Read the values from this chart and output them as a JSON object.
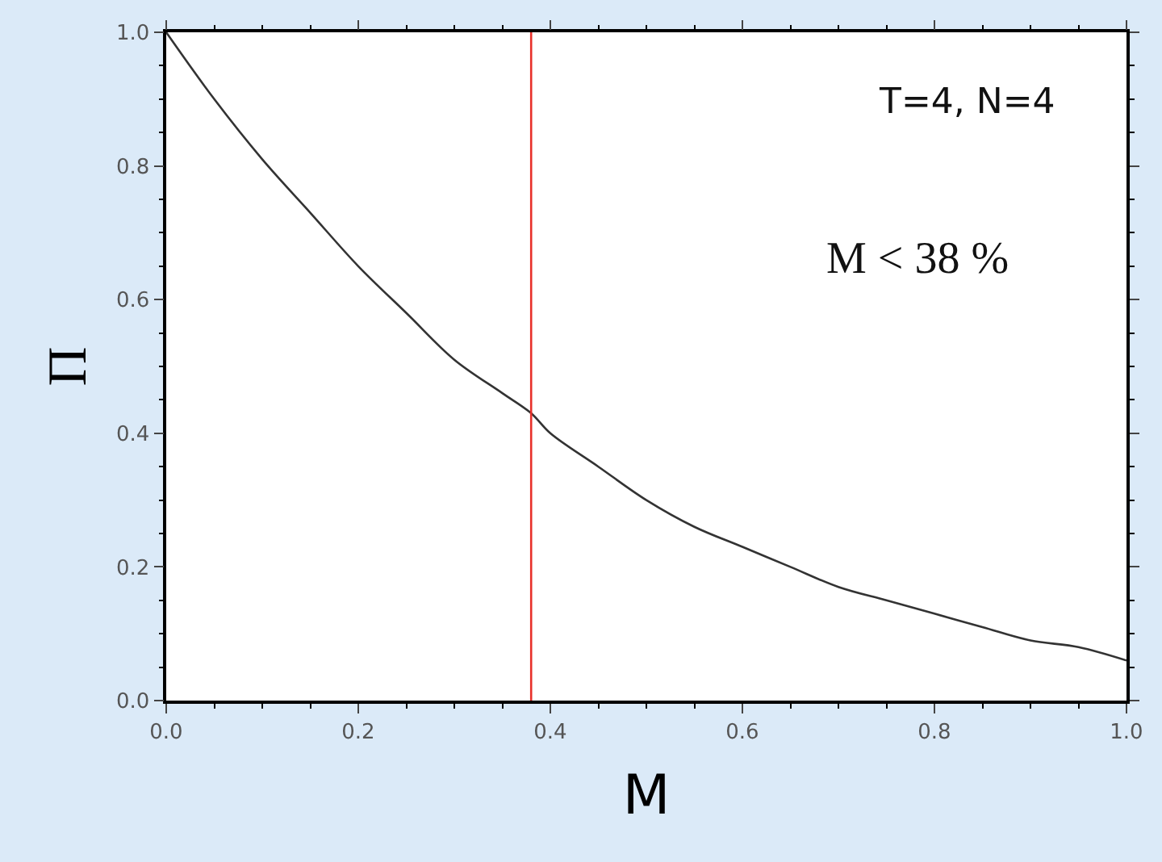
{
  "chart_data": {
    "type": "line",
    "xlabel": "M",
    "ylabel": "Π",
    "annotations": [
      "T=4, N=4",
      "M < 38 %"
    ],
    "x": [
      0,
      0.05,
      0.1,
      0.15,
      0.2,
      0.25,
      0.3,
      0.35,
      0.38,
      0.4,
      0.45,
      0.5,
      0.55,
      0.6,
      0.65,
      0.7,
      0.75,
      0.8,
      0.85,
      0.9,
      0.95,
      1.0
    ],
    "series": [
      {
        "color": "#333333",
        "values": [
          1.0,
          0.9,
          0.81,
          0.73,
          0.65,
          0.58,
          0.51,
          0.46,
          0.43,
          0.4,
          0.35,
          0.3,
          0.26,
          0.23,
          0.2,
          0.17,
          0.15,
          0.13,
          0.11,
          0.09,
          0.08,
          0.06
        ]
      }
    ],
    "xlim": [
      0,
      1
    ],
    "ylim": [
      0,
      1
    ],
    "xticks": [
      {
        "value": 0,
        "label": "0.0"
      },
      {
        "value": 0.2,
        "label": "0.2"
      },
      {
        "value": 0.4,
        "label": "0.4"
      },
      {
        "value": 0.6,
        "label": "0.6"
      },
      {
        "value": 0.8,
        "label": "0.8"
      },
      {
        "value": 1,
        "label": "1.0"
      }
    ],
    "yticks": [
      {
        "value": 0,
        "label": "0.0"
      },
      {
        "value": 0.2,
        "label": "0.2"
      },
      {
        "value": 0.4,
        "label": "0.4"
      },
      {
        "value": 0.6,
        "label": "0.6"
      },
      {
        "value": 0.8,
        "label": "0.8"
      },
      {
        "value": 1,
        "label": "1.0"
      }
    ],
    "ref_lines": [
      {
        "axis": "x",
        "value": 0.38,
        "color": "#e8302a"
      }
    ],
    "legend": false,
    "marker": "none",
    "line_style": "solid"
  }
}
